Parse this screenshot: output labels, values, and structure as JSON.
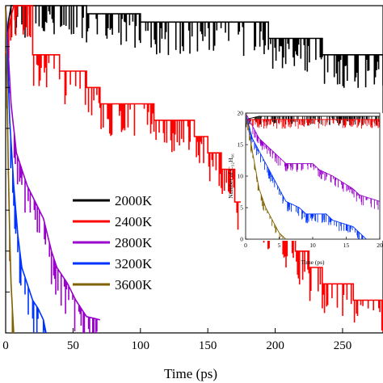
{
  "chart_data": [
    {
      "type": "line",
      "xlabel": "Time (ps)",
      "ylabel": "",
      "xlim": [
        0,
        280
      ],
      "ylim": [
        0,
        20
      ],
      "xticks": [
        0,
        50,
        100,
        150,
        200,
        250
      ],
      "legend_position": "center-left",
      "series": [
        {
          "name": "2000K",
          "color": "#000000",
          "points": [
            [
              0,
              17
            ],
            [
              2,
              19
            ],
            [
              4,
              20
            ],
            [
              60,
              20
            ],
            [
              60,
              19.5
            ],
            [
              100,
              19.5
            ],
            [
              100,
              19
            ],
            [
              195,
              19
            ],
            [
              195,
              18
            ],
            [
              235,
              18
            ],
            [
              235,
              17
            ],
            [
              280,
              17
            ]
          ]
        },
        {
          "name": "2400K",
          "color": "#ff0000",
          "points": [
            [
              0,
              17
            ],
            [
              3,
              19
            ],
            [
              6,
              20
            ],
            [
              20,
              20
            ],
            [
              20,
              17
            ],
            [
              40,
              17
            ],
            [
              40,
              16
            ],
            [
              60,
              16
            ],
            [
              60,
              15
            ],
            [
              70,
              15
            ],
            [
              70,
              14
            ],
            [
              110,
              14
            ],
            [
              110,
              13
            ],
            [
              140,
              13
            ],
            [
              140,
              12
            ],
            [
              150,
              12
            ],
            [
              150,
              11
            ],
            [
              160,
              11
            ],
            [
              160,
              10
            ],
            [
              170,
              10
            ],
            [
              170,
              8
            ],
            [
              190,
              8
            ],
            [
              190,
              7
            ],
            [
              205,
              7
            ],
            [
              205,
              6
            ],
            [
              215,
              6
            ],
            [
              215,
              5
            ],
            [
              225,
              5
            ],
            [
              225,
              4
            ],
            [
              235,
              4
            ],
            [
              235,
              3
            ],
            [
              258,
              3
            ],
            [
              258,
              2
            ],
            [
              280,
              2
            ]
          ]
        },
        {
          "name": "2800K",
          "color": "#9900cc",
          "points": [
            [
              0,
              20
            ],
            [
              4,
              14
            ],
            [
              8,
              11
            ],
            [
              12,
              10
            ],
            [
              16,
              9
            ],
            [
              22,
              8
            ],
            [
              28,
              7
            ],
            [
              34,
              5
            ],
            [
              38,
              4
            ],
            [
              46,
              3
            ],
            [
              52,
              2
            ],
            [
              60,
              1
            ],
            [
              70,
              0.8
            ]
          ]
        },
        {
          "name": "3200K",
          "color": "#0033ff",
          "points": [
            [
              0,
              20
            ],
            [
              3,
              13
            ],
            [
              6,
              9
            ],
            [
              9,
              6
            ],
            [
              12,
              4
            ],
            [
              16,
              3
            ],
            [
              20,
              2
            ],
            [
              24,
              1.5
            ],
            [
              28,
              0.8
            ],
            [
              30,
              0
            ]
          ]
        },
        {
          "name": "3600K",
          "color": "#806000",
          "points": [
            [
              0,
              20
            ],
            [
              1,
              15
            ],
            [
              2,
              10
            ],
            [
              3,
              6
            ],
            [
              4,
              3
            ],
            [
              5,
              1.5
            ],
            [
              6,
              0
            ]
          ]
        }
      ]
    },
    {
      "type": "line",
      "xlabel": "Time (ps)",
      "ylabel": "Number of C₃₂H₆₆",
      "xlim": [
        0,
        20
      ],
      "ylim": [
        0,
        20
      ],
      "xticks": [
        0,
        5,
        10,
        15,
        20
      ],
      "yticks": [
        0,
        5,
        10,
        15,
        20
      ],
      "series": [
        {
          "name": "2000K",
          "color": "#000000",
          "points": [
            [
              0,
              19
            ],
            [
              2,
              19.5
            ],
            [
              20,
              19.5
            ]
          ]
        },
        {
          "name": "2400K",
          "color": "#ff0000",
          "points": [
            [
              0,
              19
            ],
            [
              20,
              19
            ]
          ]
        },
        {
          "name": "2800K",
          "color": "#9900cc",
          "points": [
            [
              0,
              20
            ],
            [
              1,
              18
            ],
            [
              2,
              16
            ],
            [
              3,
              15
            ],
            [
              4,
              14
            ],
            [
              5,
              13
            ],
            [
              6,
              12
            ],
            [
              10,
              12
            ],
            [
              11,
              11
            ],
            [
              13,
              10
            ],
            [
              16,
              8
            ],
            [
              17,
              7
            ],
            [
              20,
              6
            ]
          ]
        },
        {
          "name": "3200K",
          "color": "#0033ff",
          "points": [
            [
              0,
              20
            ],
            [
              1,
              16
            ],
            [
              2,
              14
            ],
            [
              3,
              12
            ],
            [
              4,
              10
            ],
            [
              5,
              8
            ],
            [
              6,
              6
            ],
            [
              8,
              5
            ],
            [
              9,
              4
            ],
            [
              12,
              4
            ],
            [
              13,
              3
            ],
            [
              16,
              2
            ],
            [
              17,
              1
            ],
            [
              18,
              0
            ]
          ]
        },
        {
          "name": "3600K",
          "color": "#806000",
          "points": [
            [
              0,
              20
            ],
            [
              1,
              14
            ],
            [
              2,
              8
            ],
            [
              3,
              5
            ],
            [
              4,
              3
            ],
            [
              5,
              1
            ],
            [
              6,
              0
            ]
          ]
        }
      ]
    }
  ]
}
